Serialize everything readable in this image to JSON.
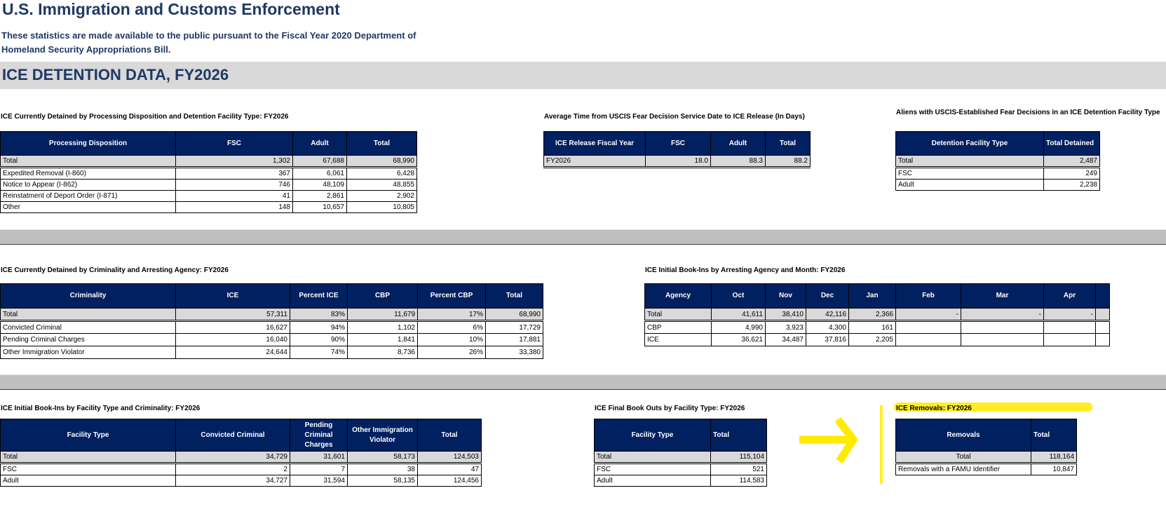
{
  "header": {
    "title": "U.S. Immigration and Customs Enforcement",
    "subtitle": "These statistics are made available to the public pursuant to the Fiscal Year 2020 Department of Homeland Security Appropriations Bill.",
    "section_title": "ICE DETENTION DATA, FY2026"
  },
  "highlight_color": "#ffeb00",
  "header_color": "#002060",
  "tables": {
    "disposition": {
      "caption": "ICE Currently Detained by Processing Disposition and Detention Facility Type: FY2026",
      "columns": [
        "Processing Disposition",
        "FSC",
        "Adult",
        "Total"
      ],
      "rows": [
        [
          "Total",
          "1,302",
          "67,688",
          "68,990"
        ],
        [
          "Expedited Removal (I-860)",
          "367",
          "6,061",
          "6,428"
        ],
        [
          "Notice to Appear (I-862)",
          "746",
          "48,109",
          "48,855"
        ],
        [
          "Reinstatment of Deport Order (I-871)",
          "41",
          "2,861",
          "2,902"
        ],
        [
          "Other",
          "148",
          "10,657",
          "10,805"
        ]
      ]
    },
    "fear_time": {
      "caption": "Average Time from USCIS Fear Decision Service Date to ICE Release (In Days)",
      "columns": [
        "ICE Release Fiscal Year",
        "FSC",
        "Adult",
        "Total"
      ],
      "rows": [
        [
          "FY2026",
          "18.0",
          "88.3",
          "88.2"
        ]
      ]
    },
    "fear_detained": {
      "caption": "Aliens with USCIS-Established Fear Decisions in an ICE Detention Facility Type",
      "columns": [
        "Detention Facility Type",
        "Total Detained"
      ],
      "rows": [
        [
          "Total",
          "2,487"
        ],
        [
          "FSC",
          "249"
        ],
        [
          "Adult",
          "2,238"
        ]
      ]
    },
    "criminality": {
      "caption": "ICE Currently Detained by Criminality and Arresting Agency: FY2026",
      "columns": [
        "Criminality",
        "ICE",
        "Percent ICE",
        "CBP",
        "Percent CBP",
        "Total"
      ],
      "rows": [
        [
          "Total",
          "57,311",
          "83%",
          "11,679",
          "17%",
          "68,990"
        ],
        [
          "Convicted Criminal",
          "16,627",
          "94%",
          "1,102",
          "6%",
          "17,729"
        ],
        [
          "Pending Criminal Charges",
          "16,040",
          "90%",
          "1,841",
          "10%",
          "17,881"
        ],
        [
          "Other Immigration Violator",
          "24,644",
          "74%",
          "8,736",
          "26%",
          "33,380"
        ]
      ]
    },
    "monthly": {
      "caption": "ICE Initial Book-Ins by Arresting Agency and Month: FY2026",
      "columns": [
        "Agency",
        "Oct",
        "Nov",
        "Dec",
        "Jan",
        "Feb",
        "Mar",
        "Apr",
        ""
      ],
      "rows": [
        [
          "Total",
          "41,611",
          "38,410",
          "42,116",
          "2,366",
          "-",
          "-",
          "-",
          ""
        ],
        [
          "CBP",
          "4,990",
          "3,923",
          "4,300",
          "161",
          "",
          "",
          "",
          ""
        ],
        [
          "ICE",
          "36,621",
          "34,487",
          "37,816",
          "2,205",
          "",
          "",
          "",
          ""
        ]
      ]
    },
    "bookins_facility": {
      "caption": "ICE Initial Book-Ins by Facility Type and Criminality: FY2026",
      "columns": [
        "Facility Type",
        "Convicted Criminal",
        "Pending Criminal Charges",
        "Other Immigration Violator",
        "Total"
      ],
      "rows": [
        [
          "Total",
          "34,729",
          "31,601",
          "58,173",
          "124,503"
        ],
        [
          "FSC",
          "2",
          "7",
          "38",
          "47"
        ],
        [
          "Adult",
          "34,727",
          "31,594",
          "58,135",
          "124,456"
        ]
      ]
    },
    "bookouts": {
      "caption": "ICE Final Book Outs by Facility Type: FY2026",
      "columns": [
        "Facility Type",
        "Total"
      ],
      "rows": [
        [
          "Total",
          "115,104"
        ],
        [
          "FSC",
          "521"
        ],
        [
          "Adult",
          "114,583"
        ]
      ]
    },
    "removals": {
      "caption": "ICE Removals: FY2026",
      "columns": [
        "Removals",
        "Total"
      ],
      "rows": [
        [
          "Total",
          "118,164"
        ],
        [
          "Removals with a FAMU Identifier",
          "10,847"
        ]
      ]
    }
  }
}
